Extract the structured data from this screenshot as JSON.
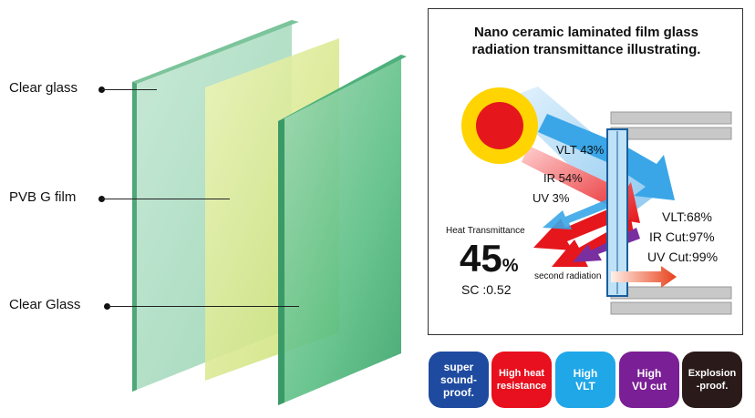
{
  "layers": {
    "top": "Clear glass",
    "middle": "PVB G film",
    "bottom": "Clear Glass"
  },
  "panel": {
    "title_line1": "Nano ceramic laminated film glass",
    "title_line2": "radiation transmittance illustrating.",
    "incoming": {
      "vlt": "VLT 43%",
      "ir": "IR 54%",
      "uv": "UV 3%"
    },
    "results": {
      "vlt": "VLT:68%",
      "ir_cut": "IR Cut:97%",
      "uv_cut": "UV Cut:99%"
    },
    "heat": {
      "label": "Heat Transmittance",
      "value": "45",
      "unit": "%",
      "sc": "SC :0.52"
    },
    "second_radiation": "second radiation"
  },
  "badges": [
    {
      "line1": "super",
      "line2": "sound-",
      "line3": "proof.",
      "color": "#1e4aa0"
    },
    {
      "line1": "High heat",
      "line2": "resistance",
      "line3": "",
      "color": "#e8101e"
    },
    {
      "line1": "High",
      "line2": "VLT",
      "line3": "",
      "color": "#1fa7e8"
    },
    {
      "line1": "High",
      "line2": "VU cut",
      "line3": "",
      "color": "#7a1f95"
    },
    {
      "line1": "Explosion",
      "line2": "-proof.",
      "line3": "",
      "color": "#2a1a1a"
    }
  ],
  "colors": {
    "glass_green": "#6fbf96",
    "film_yellow": "#d8e88a",
    "sun": "#e5171c",
    "sun_rays": "#ffd400",
    "vlt_arrow": "#3aa6e8",
    "ir_arrow": "#e5171c",
    "uv_arrow": "#7a2fa0"
  }
}
